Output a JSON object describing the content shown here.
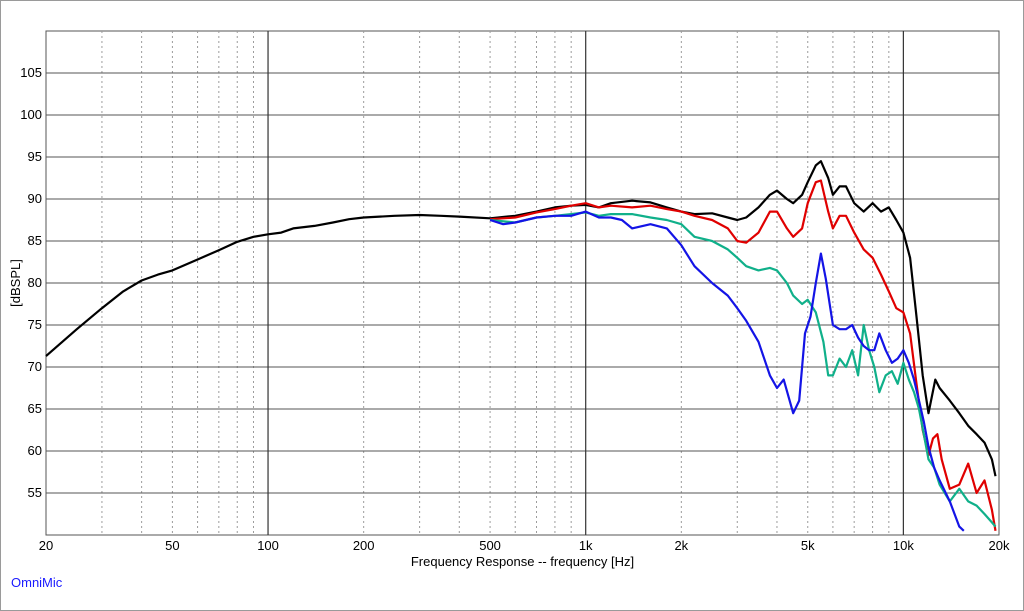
{
  "brand": {
    "label": "OmniMic",
    "color": "#1a1aff"
  },
  "chart_data": {
    "type": "line",
    "title": "",
    "xlabel": "Frequency Response -- frequency [Hz]",
    "ylabel": "[dBSPL]",
    "xscale": "log",
    "xlim": [
      20,
      20000
    ],
    "ylim": [
      50,
      110
    ],
    "grid": true,
    "legend": "none",
    "xticks": [
      {
        "value": 20,
        "label": "20"
      },
      {
        "value": 50,
        "label": "50"
      },
      {
        "value": 100,
        "label": "100"
      },
      {
        "value": 200,
        "label": "200"
      },
      {
        "value": 500,
        "label": "500"
      },
      {
        "value": 1000,
        "label": "1k"
      },
      {
        "value": 2000,
        "label": "2k"
      },
      {
        "value": 5000,
        "label": "5k"
      },
      {
        "value": 10000,
        "label": "10k"
      },
      {
        "value": 20000,
        "label": "20k"
      }
    ],
    "yticks": [
      55,
      60,
      65,
      70,
      75,
      80,
      85,
      90,
      95,
      100,
      105
    ],
    "series": [
      {
        "color": "#000000",
        "x": [
          20,
          25,
          30,
          35,
          40,
          45,
          50,
          60,
          70,
          80,
          90,
          100,
          110,
          120,
          140,
          160,
          180,
          200,
          250,
          300,
          350,
          400,
          500,
          600,
          700,
          800,
          900,
          1000,
          1100,
          1200,
          1400,
          1600,
          1800,
          2000,
          2200,
          2500,
          2800,
          3000,
          3200,
          3500,
          3800,
          4000,
          4300,
          4500,
          4800,
          5000,
          5300,
          5500,
          5800,
          6000,
          6300,
          6600,
          7000,
          7500,
          8000,
          8500,
          9000,
          9500,
          10000,
          10500,
          11000,
          11500,
          12000,
          12300,
          12600,
          13000,
          14000,
          15000,
          16000,
          17000,
          18000,
          19000,
          19500
        ],
        "y": [
          71.3,
          74.5,
          77.0,
          79.0,
          80.3,
          81.0,
          81.5,
          82.8,
          83.9,
          84.9,
          85.5,
          85.8,
          86.0,
          86.5,
          86.8,
          87.2,
          87.6,
          87.8,
          88.0,
          88.1,
          88.0,
          87.9,
          87.7,
          88.0,
          88.5,
          89.0,
          89.2,
          89.3,
          89.0,
          89.5,
          89.8,
          89.6,
          89.0,
          88.5,
          88.2,
          88.3,
          87.8,
          87.5,
          87.8,
          89.0,
          90.5,
          91.0,
          90.0,
          89.5,
          90.5,
          92.0,
          94.0,
          94.5,
          92.5,
          90.5,
          91.5,
          91.5,
          89.5,
          88.5,
          89.5,
          88.5,
          89.0,
          87.5,
          86.0,
          83.0,
          76.0,
          69.0,
          64.5,
          66.5,
          68.5,
          67.5,
          66.0,
          64.5,
          63.0,
          62.0,
          61.0,
          59.0,
          57.0
        ]
      },
      {
        "color": "#e00000",
        "x": [
          500,
          600,
          700,
          800,
          900,
          1000,
          1100,
          1200,
          1400,
          1600,
          1800,
          2000,
          2200,
          2500,
          2800,
          3000,
          3200,
          3500,
          3800,
          4000,
          4300,
          4500,
          4800,
          5000,
          5300,
          5500,
          5800,
          6000,
          6300,
          6600,
          7000,
          7500,
          8000,
          8500,
          9000,
          9500,
          10000,
          10500,
          11000,
          11500,
          12000,
          12400,
          12800,
          13200,
          14000,
          15000,
          16000,
          17000,
          18000,
          19000,
          19500
        ],
        "y": [
          87.6,
          87.8,
          88.4,
          88.8,
          89.2,
          89.5,
          89.0,
          89.2,
          89.0,
          89.2,
          88.8,
          88.5,
          88.0,
          87.5,
          86.5,
          85.0,
          84.8,
          86.0,
          88.5,
          88.5,
          86.5,
          85.5,
          86.5,
          89.5,
          92.0,
          92.2,
          88.5,
          86.5,
          88.0,
          88.0,
          86.0,
          84.0,
          83.0,
          81.0,
          79.0,
          77.0,
          76.5,
          74.0,
          68.0,
          62.5,
          59.5,
          61.5,
          62.0,
          59.0,
          55.5,
          56.0,
          58.5,
          55.0,
          56.5,
          53.0,
          50.5
        ]
      },
      {
        "color": "#10b08a",
        "x": [
          500,
          600,
          700,
          800,
          900,
          1000,
          1100,
          1200,
          1400,
          1600,
          1800,
          2000,
          2200,
          2500,
          2800,
          3000,
          3200,
          3500,
          3800,
          4000,
          4300,
          4500,
          4800,
          5000,
          5300,
          5600,
          5800,
          6000,
          6300,
          6600,
          6900,
          7200,
          7500,
          7800,
          8100,
          8400,
          8800,
          9200,
          9600,
          10000,
          10400,
          10800,
          11200,
          11600,
          12000,
          12500,
          13000,
          14000,
          15000,
          16000,
          17000,
          18000,
          19000,
          19500
        ],
        "y": [
          87.5,
          87.2,
          87.8,
          88.0,
          88.2,
          88.4,
          88.0,
          88.2,
          88.2,
          87.8,
          87.5,
          87.0,
          85.5,
          85.0,
          84.0,
          83.0,
          82.0,
          81.5,
          81.8,
          81.5,
          80.0,
          78.5,
          77.5,
          78.0,
          76.5,
          73.0,
          69.0,
          69.0,
          71.0,
          70.0,
          72.0,
          69.0,
          75.0,
          72.0,
          70.0,
          67.0,
          69.0,
          69.5,
          68.0,
          70.5,
          68.5,
          67.0,
          65.0,
          62.0,
          59.0,
          58.0,
          56.0,
          54.0,
          55.5,
          54.0,
          53.5,
          52.5,
          51.5,
          51.0
        ]
      },
      {
        "color": "#1414e6",
        "x": [
          500,
          550,
          600,
          700,
          800,
          900,
          1000,
          1100,
          1200,
          1300,
          1400,
          1600,
          1800,
          2000,
          2200,
          2500,
          2800,
          3000,
          3200,
          3500,
          3800,
          4000,
          4200,
          4500,
          4700,
          4900,
          5100,
          5300,
          5500,
          5700,
          6000,
          6300,
          6600,
          6900,
          7200,
          7500,
          7800,
          8100,
          8400,
          8800,
          9200,
          9600,
          10000,
          10400,
          10800,
          11200,
          11600,
          12000,
          12500,
          13000,
          14000,
          15000,
          15500
        ],
        "y": [
          87.5,
          87.0,
          87.2,
          87.8,
          88.0,
          88.0,
          88.5,
          87.8,
          87.8,
          87.5,
          86.5,
          87.0,
          86.5,
          84.5,
          82.0,
          80.0,
          78.5,
          77.0,
          75.5,
          73.0,
          69.0,
          67.5,
          68.5,
          64.5,
          66.0,
          74.0,
          76.0,
          80.0,
          83.5,
          80.5,
          75.0,
          74.5,
          74.5,
          75.0,
          73.5,
          72.5,
          72.0,
          72.0,
          74.0,
          72.0,
          70.5,
          71.0,
          72.0,
          70.5,
          68.5,
          66.0,
          63.5,
          60.5,
          58.0,
          56.5,
          54.0,
          51.0,
          50.5
        ]
      }
    ]
  }
}
